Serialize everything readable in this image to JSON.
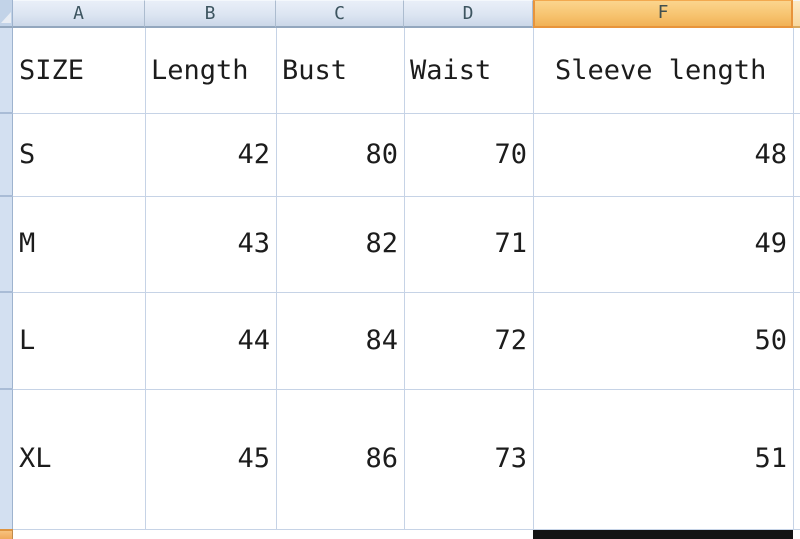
{
  "column_headers": {
    "items": [
      "A",
      "B",
      "C",
      "D",
      "F"
    ],
    "selected": "F"
  },
  "table": {
    "header_row": [
      "SIZE",
      "Length",
      "Bust",
      "Waist",
      "Sleeve length"
    ],
    "rows": [
      [
        "S",
        "42",
        "80",
        "70",
        "48"
      ],
      [
        "M",
        "43",
        "82",
        "71",
        "49"
      ],
      [
        "L",
        "44",
        "84",
        "72",
        "50"
      ],
      [
        "XL",
        "45",
        "86",
        "73",
        "51"
      ]
    ]
  },
  "colors": {
    "selected_header_fill": "#F5BC63",
    "selected_header_border": "#E8943B",
    "header_fill": "#DCE5F2",
    "header_text": "#3D5560",
    "gridline": "#C6D3E6",
    "row_strip_fill": "#D3E0F1",
    "row_strip_selected_fragment": "#F0A95C",
    "thick_bottom_border": "#141414",
    "cell_text": "#1C1C1C"
  }
}
